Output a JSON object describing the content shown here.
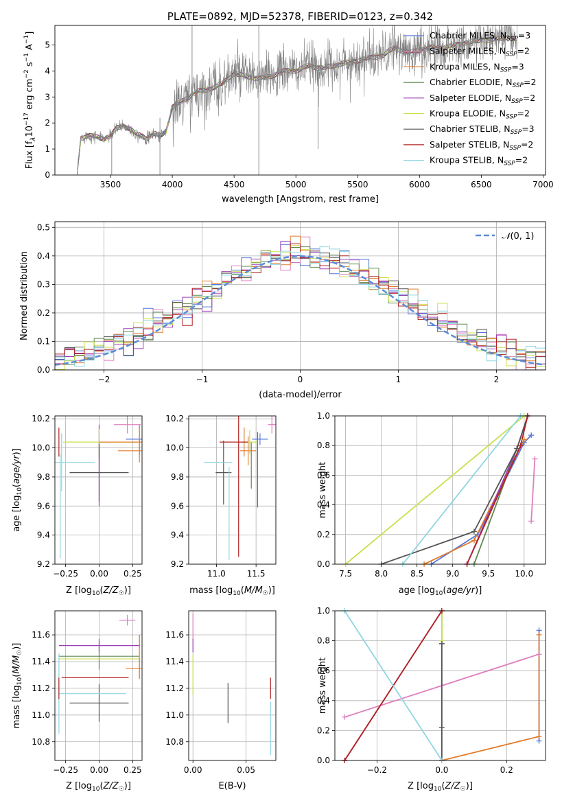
{
  "colors": {
    "chabrier_miles": "#5577dd",
    "salpeter_miles": "#e07fbd",
    "kroupa_miles": "#e07b2a",
    "chabrier_elodie": "#5d8a4f",
    "salpeter_elodie": "#9b3fb8",
    "kroupa_elodie": "#c9e04a",
    "chabrier_stelib": "#555555",
    "salpeter_stelib": "#b22222",
    "kroupa_stelib": "#8fd6e0",
    "spectrum": "#808080",
    "normal_curve": "#5b8bd6",
    "grid": "#b0b0b0"
  },
  "chart_data": [
    {
      "id": "spectrum",
      "type": "line",
      "title": "PLATE=0892, MJD=52378, FIBERID=0123, z=0.342",
      "xlabel": "wavelength [Angstrom, rest frame]",
      "ylabel": "Flux [f",
      "xlim": [
        3050,
        7020
      ],
      "ylim": [
        0,
        5.75
      ],
      "xticks": [
        3500,
        4000,
        4500,
        5000,
        5500,
        6000,
        6500,
        7000
      ],
      "yticks": [
        0,
        1,
        2,
        3,
        4,
        5
      ],
      "grid": false,
      "legend": "top-right",
      "spectrum_anchors": {
        "x": [
          3230,
          3260,
          3300,
          3350,
          3400,
          3450,
          3500,
          3550,
          3600,
          3650,
          3700,
          3750,
          3800,
          3850,
          3900,
          3950,
          4000,
          4100,
          4200,
          4300,
          4400,
          4500,
          4600,
          4700,
          4800,
          4900,
          5000,
          5100,
          5200,
          5300,
          5400,
          5500,
          5600,
          5700,
          5800,
          5900,
          6000,
          6100,
          6200,
          6300,
          6400,
          6500,
          6600,
          6700,
          6780
        ],
        "y": [
          0.1,
          1.4,
          1.5,
          1.5,
          1.45,
          1.4,
          1.5,
          1.8,
          1.9,
          1.8,
          1.6,
          1.5,
          1.4,
          1.6,
          1.5,
          1.7,
          2.6,
          2.9,
          3.2,
          3.3,
          3.5,
          3.9,
          3.8,
          3.7,
          3.8,
          4.0,
          4.0,
          4.2,
          4.1,
          4.2,
          4.3,
          4.4,
          4.5,
          4.6,
          4.9,
          4.7,
          4.8,
          4.9,
          4.9,
          5.0,
          5.1,
          5.2,
          5.2,
          5.3,
          5.2
        ]
      },
      "series": [
        {
          "name": "Chabrier MILES",
          "nssp": "3"
        },
        {
          "name": "Salpeter MILES",
          "nssp": "2"
        },
        {
          "name": "Kroupa MILES",
          "nssp": "3"
        },
        {
          "name": "Chabrier ELODIE",
          "nssp": "2"
        },
        {
          "name": "Salpeter ELODIE",
          "nssp": "2"
        },
        {
          "name": "Kroupa ELODIE",
          "nssp": "2"
        },
        {
          "name": "Chabrier STELIB",
          "nssp": "3"
        },
        {
          "name": "Salpeter STELIB",
          "nssp": "2"
        },
        {
          "name": "Kroupa STELIB",
          "nssp": "2"
        }
      ]
    },
    {
      "id": "residuals",
      "type": "line",
      "xlabel": "(data-model)/error",
      "ylabel": "Normed distribution",
      "xlim": [
        -2.5,
        2.5
      ],
      "ylim": [
        0,
        0.52
      ],
      "xticks": [
        -2,
        -1,
        0,
        1,
        2
      ],
      "yticks": [
        0.0,
        0.1,
        0.2,
        0.3,
        0.4,
        0.5
      ],
      "grid": true,
      "legend": "top-right",
      "legend_label": "(0, 1)",
      "bin_width": 0.1,
      "histogram_series": 9
    },
    {
      "id": "age_vs_Z",
      "type": "scatter",
      "xlabel": "Z [log",
      "ylabel": "age  [log",
      "xlim": [
        -0.33,
        0.32
      ],
      "ylim": [
        9.2,
        10.22
      ],
      "xticks": [
        -0.25,
        0.0,
        0.25
      ],
      "yticks": [
        9.2,
        9.4,
        9.6,
        9.8,
        10.0,
        10.2
      ],
      "grid": true,
      "points": [
        {
          "x": 0.3,
          "y": 10.06,
          "xerr": 0.1,
          "yerr": 0.1,
          "color": "chabrier_miles"
        },
        {
          "x": 0.21,
          "y": 10.16,
          "xerr": 0.1,
          "yerr": 0.06,
          "color": "salpeter_miles"
        },
        {
          "x": 0.3,
          "y": 9.98,
          "xerr": 0.16,
          "yerr": 0.08,
          "color": "kroupa_miles"
        },
        {
          "x": 0.0,
          "y": 10.03,
          "xerr": 0.0,
          "yerr": 0.1,
          "color": "chabrier_elodie"
        },
        {
          "x": 0.0,
          "y": 9.88,
          "xerr": 0.0,
          "yerr": 0.28,
          "color": "salpeter_elodie"
        },
        {
          "x": 0.0,
          "y": 10.04,
          "xerr": 0.27,
          "yerr": 0.09,
          "color": "kroupa_elodie"
        },
        {
          "x": 0.0,
          "y": 9.83,
          "xerr": 0.22,
          "yerr": 0.2,
          "color": "chabrier_stelib"
        },
        {
          "x": -0.3,
          "y": 10.04,
          "xerr": 0.0,
          "yerr": 0.1,
          "color": "salpeter_stelib"
        },
        {
          "x": -0.28,
          "y": 9.9,
          "xerr": 0.25,
          "yerr": 0.2,
          "color": "kroupa_stelib"
        },
        {
          "x": 0.3,
          "y": 10.04,
          "xerr": 0.3,
          "yerr": 0.1,
          "color": "kroupa_miles"
        },
        {
          "x": -0.29,
          "y": 9.6,
          "xerr": 0.0,
          "yerr": 0.36,
          "color": "kroupa_stelib"
        }
      ]
    },
    {
      "id": "age_vs_mass",
      "type": "scatter",
      "xlabel": "mass [log",
      "xlim": [
        10.65,
        11.75
      ],
      "ylim": [
        9.2,
        10.22
      ],
      "xticks": [
        11.0,
        11.5
      ],
      "yticks": [
        9.2,
        9.4,
        9.6,
        9.8,
        10.0,
        10.2
      ],
      "grid": true,
      "points": [
        {
          "x": 11.55,
          "y": 10.06,
          "xerr": 0.1,
          "yerr": 0.04,
          "color": "chabrier_miles"
        },
        {
          "x": 11.7,
          "y": 10.16,
          "xerr": 0.05,
          "yerr": 0.06,
          "color": "salpeter_miles"
        },
        {
          "x": 11.4,
          "y": 9.98,
          "xerr": 0.1,
          "yerr": 0.1,
          "color": "kroupa_miles"
        },
        {
          "x": 11.44,
          "y": 9.88,
          "xerr": 0.0,
          "yerr": 0.16,
          "color": "chabrier_elodie"
        },
        {
          "x": 11.52,
          "y": 9.85,
          "xerr": 0.0,
          "yerr": 0.26,
          "color": "salpeter_elodie"
        },
        {
          "x": 11.42,
          "y": 10.04,
          "xerr": 0.1,
          "yerr": 0.08,
          "color": "kroupa_elodie"
        },
        {
          "x": 11.09,
          "y": 9.83,
          "xerr": 0.1,
          "yerr": 0.22,
          "color": "chabrier_stelib"
        },
        {
          "x": 11.28,
          "y": 9.75,
          "xerr": 0.0,
          "yerr": 0.5,
          "color": "salpeter_stelib"
        },
        {
          "x": 11.02,
          "y": 9.9,
          "xerr": 0.18,
          "yerr": 0.0,
          "color": "kroupa_stelib"
        },
        {
          "x": 11.16,
          "y": 9.55,
          "xerr": 0.0,
          "yerr": 0.32,
          "color": "kroupa_stelib"
        },
        {
          "x": 11.35,
          "y": 10.04,
          "xerr": 0.0,
          "yerr": 0.1,
          "color": "kroupa_miles"
        },
        {
          "x": 11.22,
          "y": 10.04,
          "xerr": 0.18,
          "yerr": 0.0,
          "color": "salpeter_stelib"
        }
      ]
    },
    {
      "id": "massweight_vs_age",
      "type": "line",
      "xlabel": "age  [log",
      "ylabel": "mass weight",
      "xlim": [
        7.35,
        10.3
      ],
      "ylim": [
        0,
        1
      ],
      "xticks": [
        7.5,
        8.0,
        8.5,
        9.0,
        9.5,
        10.0
      ],
      "yticks": [
        0.0,
        0.2,
        0.4,
        0.6,
        0.8,
        1.0
      ],
      "grid": true,
      "series": [
        {
          "color": "chabrier_miles",
          "x": [
            8.7,
            9.35,
            10.0,
            10.1
          ],
          "y": [
            0.0,
            0.2,
            0.82,
            0.87
          ]
        },
        {
          "color": "salpeter_miles",
          "x": [
            10.1,
            10.15
          ],
          "y": [
            0.29,
            0.71
          ]
        },
        {
          "color": "kroupa_miles",
          "x": [
            8.6,
            9.3,
            10.0
          ],
          "y": [
            0.0,
            0.16,
            0.84
          ]
        },
        {
          "color": "chabrier_elodie",
          "x": [
            9.3,
            9.9,
            10.05
          ],
          "y": [
            0.0,
            0.78,
            1.0
          ]
        },
        {
          "color": "salpeter_elodie",
          "x": [
            9.2,
            9.9,
            10.05
          ],
          "y": [
            0.0,
            0.78,
            1.0
          ]
        },
        {
          "color": "kroupa_elodie",
          "x": [
            7.5,
            10.0
          ],
          "y": [
            0.0,
            1.0
          ]
        },
        {
          "color": "chabrier_stelib",
          "x": [
            8.0,
            9.3,
            9.9,
            10.05
          ],
          "y": [
            0.0,
            0.22,
            0.78,
            1.0
          ]
        },
        {
          "color": "salpeter_stelib",
          "x": [
            9.2,
            9.95,
            10.05
          ],
          "y": [
            0.0,
            0.8,
            1.0
          ]
        },
        {
          "color": "kroupa_stelib",
          "x": [
            8.3,
            9.95
          ],
          "y": [
            0.0,
            1.0
          ]
        }
      ]
    },
    {
      "id": "mass_vs_Z",
      "type": "scatter",
      "xlabel": "Z [log",
      "ylabel": "mass [log",
      "xlim": [
        -0.33,
        0.32
      ],
      "ylim": [
        10.66,
        11.78
      ],
      "xticks": [
        -0.25,
        0.0,
        0.25
      ],
      "yticks": [
        10.8,
        11.0,
        11.2,
        11.4,
        11.6
      ],
      "grid": true,
      "points": [
        {
          "x": 0.3,
          "y": 11.55,
          "xerr": 0.0,
          "yerr": 0.05,
          "color": "chabrier_miles"
        },
        {
          "x": 0.21,
          "y": 11.71,
          "xerr": 0.06,
          "yerr": 0.04,
          "color": "salpeter_miles"
        },
        {
          "x": 0.3,
          "y": 11.35,
          "xerr": 0.1,
          "yerr": 0.08,
          "color": "kroupa_miles"
        },
        {
          "x": 0.0,
          "y": 11.44,
          "xerr": 0.3,
          "yerr": 0.1,
          "color": "chabrier_elodie"
        },
        {
          "x": 0.0,
          "y": 11.52,
          "xerr": 0.3,
          "yerr": 0.05,
          "color": "salpeter_elodie"
        },
        {
          "x": 0.0,
          "y": 11.42,
          "xerr": 0.3,
          "yerr": 0.0,
          "color": "kroupa_elodie"
        },
        {
          "x": 0.0,
          "y": 11.09,
          "xerr": 0.22,
          "yerr": 0.14,
          "color": "chabrier_stelib"
        },
        {
          "x": -0.03,
          "y": 11.28,
          "xerr": 0.25,
          "yerr": 0.0,
          "color": "salpeter_stelib"
        },
        {
          "x": -0.3,
          "y": 11.16,
          "xerr": 0.0,
          "yerr": 0.3,
          "color": "kroupa_stelib"
        },
        {
          "x": -0.05,
          "y": 11.16,
          "xerr": 0.25,
          "yerr": 0.0,
          "color": "kroupa_stelib"
        },
        {
          "x": 0.3,
          "y": 11.43,
          "xerr": 0.0,
          "yerr": 0.16,
          "color": "kroupa_miles"
        },
        {
          "x": -0.3,
          "y": 11.2,
          "xerr": 0.0,
          "yerr": 0.08,
          "color": "salpeter_stelib"
        }
      ]
    },
    {
      "id": "mass_vs_ebv",
      "type": "scatter",
      "xlabel": "E(B-V)",
      "xlim": [
        -0.004,
        0.078
      ],
      "ylim": [
        10.66,
        11.78
      ],
      "xticks": [
        0.0,
        0.05
      ],
      "yticks": [
        10.8,
        11.0,
        11.2,
        11.4,
        11.6
      ],
      "grid": true,
      "points": [
        {
          "x": 0.0,
          "y": 11.66,
          "xerr": 0.0,
          "yerr": 0.1,
          "color": "salpeter_miles"
        },
        {
          "x": 0.0,
          "y": 11.52,
          "xerr": 0.0,
          "yerr": 0.05,
          "color": "salpeter_elodie"
        },
        {
          "x": 0.0,
          "y": 11.3,
          "xerr": 0.0,
          "yerr": 0.15,
          "color": "kroupa_elodie"
        },
        {
          "x": 0.033,
          "y": 11.09,
          "xerr": 0.0,
          "yerr": 0.15,
          "color": "chabrier_stelib"
        },
        {
          "x": 0.073,
          "y": 11.2,
          "xerr": 0.0,
          "yerr": 0.08,
          "color": "salpeter_stelib"
        },
        {
          "x": 0.073,
          "y": 10.9,
          "xerr": 0.0,
          "yerr": 0.2,
          "color": "kroupa_stelib"
        }
      ]
    },
    {
      "id": "massweight_vs_Z",
      "type": "line",
      "xlabel": "Z [log",
      "ylabel": "mass weight",
      "xlim": [
        -0.33,
        0.32
      ],
      "ylim": [
        0,
        1
      ],
      "xticks": [
        -0.2,
        0.0,
        0.2
      ],
      "yticks": [
        0.0,
        0.2,
        0.4,
        0.6,
        0.8,
        1.0
      ],
      "grid": true,
      "series": [
        {
          "color": "chabrier_miles",
          "x": [
            0.3,
            0.3
          ],
          "y": [
            0.13,
            0.87
          ]
        },
        {
          "color": "salpeter_miles",
          "x": [
            -0.3,
            0.3
          ],
          "y": [
            0.29,
            0.71
          ]
        },
        {
          "color": "kroupa_miles",
          "x": [
            0.0,
            0.3,
            0.3
          ],
          "y": [
            0.0,
            0.16,
            0.84
          ]
        },
        {
          "color": "chabrier_elodie",
          "x": [
            0.0,
            0.0
          ],
          "y": [
            0.78,
            1.0
          ]
        },
        {
          "color": "salpeter_elodie",
          "x": [
            -0.3,
            0.0
          ],
          "y": [
            0.0,
            1.0
          ]
        },
        {
          "color": "kroupa_elodie",
          "x": [
            0.0,
            0.0
          ],
          "y": [
            0.8,
            1.0
          ]
        },
        {
          "color": "chabrier_stelib",
          "x": [
            0.0,
            0.0,
            0.0
          ],
          "y": [
            0.0,
            0.22,
            0.78
          ]
        },
        {
          "color": "salpeter_stelib",
          "x": [
            -0.3,
            0.0
          ],
          "y": [
            0.0,
            1.0
          ]
        },
        {
          "color": "kroupa_stelib",
          "x": [
            -0.3,
            0.0
          ],
          "y": [
            1.0,
            0.0
          ]
        }
      ]
    }
  ]
}
